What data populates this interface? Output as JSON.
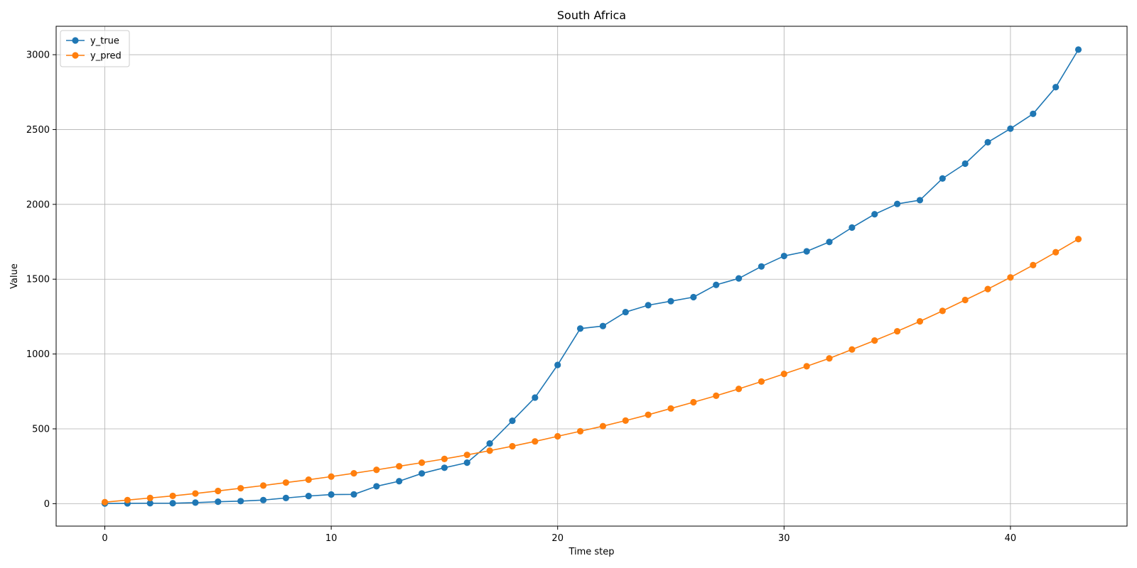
{
  "chart_data": {
    "type": "line",
    "title": "South Africa",
    "xlabel": "Time step",
    "ylabel": "Value",
    "xlim": [
      -2.15,
      45.15
    ],
    "ylim": [
      -150,
      3190
    ],
    "xticks": [
      0,
      10,
      20,
      30,
      40
    ],
    "yticks": [
      0,
      500,
      1000,
      1500,
      2000,
      2500,
      3000
    ],
    "grid": true,
    "legend_position": "top-left",
    "x": [
      0,
      1,
      2,
      3,
      4,
      5,
      6,
      7,
      8,
      9,
      10,
      11,
      12,
      13,
      14,
      15,
      16,
      17,
      18,
      19,
      20,
      21,
      22,
      23,
      24,
      25,
      26,
      27,
      28,
      29,
      30,
      31,
      32,
      33,
      34,
      35,
      36,
      37,
      38,
      39,
      40,
      41,
      42,
      43
    ],
    "series": [
      {
        "name": "y_true",
        "color": "#1f77b4",
        "values": [
          1,
          2,
          3,
          3,
          7,
          13,
          17,
          24,
          38,
          51,
          61,
          62,
          116,
          150,
          202,
          240,
          274,
          402,
          554,
          709,
          927,
          1170,
          1187,
          1280,
          1326,
          1353,
          1380,
          1462,
          1505,
          1585,
          1655,
          1686,
          1749,
          1845,
          1934,
          2003,
          2028,
          2173,
          2272,
          2415,
          2506,
          2605,
          2783,
          3034
        ]
      },
      {
        "name": "y_pred",
        "color": "#ff7f0e",
        "values": [
          10,
          24,
          38,
          52,
          68,
          85,
          103,
          121,
          141,
          160,
          181,
          203,
          226,
          250,
          274,
          299,
          326,
          354,
          384,
          416,
          450,
          484,
          518,
          555,
          594,
          636,
          678,
          721,
          767,
          816,
          867,
          918,
          971,
          1030,
          1090,
          1152,
          1218,
          1288,
          1361,
          1434,
          1512,
          1594,
          1680,
          1768
        ]
      }
    ]
  }
}
